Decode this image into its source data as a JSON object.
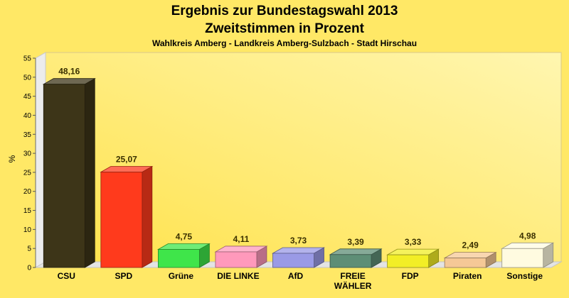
{
  "chart_data": {
    "type": "bar",
    "title_line1": "Ergebnis zur Bundestagswahl 2013",
    "title_line2": "Zweitstimmen in Prozent",
    "subtitle": "Wahlkreis Amberg - Landkreis Amberg-Sulzbach - Stadt Hirschau",
    "ylabel": "%",
    "xlabel": "",
    "ylim": [
      0,
      55
    ],
    "yticks": [
      0,
      5,
      10,
      15,
      20,
      25,
      30,
      35,
      40,
      45,
      50,
      55
    ],
    "grid": false,
    "categories": [
      "CSU",
      "SPD",
      "Grüne",
      "DIE LINKE",
      "AfD",
      "FREIE\nWÄHLER",
      "FDP",
      "Piraten",
      "Sonstige"
    ],
    "values": [
      48.16,
      25.07,
      4.75,
      4.11,
      3.73,
      3.39,
      3.33,
      2.49,
      4.98
    ],
    "value_labels": [
      "48,16",
      "25,07",
      "4,75",
      "4,11",
      "3,73",
      "3,39",
      "3,33",
      "2,49",
      "4,98"
    ],
    "colors": [
      "#3d3518",
      "#ff3a1c",
      "#3fe54a",
      "#ff99bb",
      "#9a9ae6",
      "#5e8e76",
      "#f2ee26",
      "#f5c896",
      "#fffbe0"
    ],
    "background_color": "#ffe866"
  }
}
